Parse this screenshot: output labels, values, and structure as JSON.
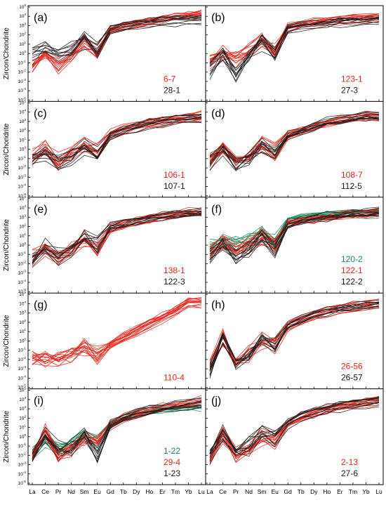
{
  "figure": {
    "ylabel": "Zircon/Chondrite",
    "x_ticks": [
      "La",
      "Ce",
      "Pr",
      "Nd",
      "Sm",
      "Eu",
      "Gd",
      "Tb",
      "Dy",
      "Ho",
      "Er",
      "Tm",
      "Yb",
      "Lu"
    ],
    "colors": {
      "red": "#e8251b",
      "black": "#1a1a1a",
      "green": "#16895a",
      "dark_red": "#7a1410"
    }
  },
  "chart_data": [
    {
      "type": "line",
      "panel": "(a)",
      "yscale": "log",
      "ylim": [
        1e-05,
        100000.0
      ],
      "categories": [
        "La",
        "Ce",
        "Pr",
        "Nd",
        "Sm",
        "Eu",
        "Gd",
        "Tb",
        "Dy",
        "Ho",
        "Er",
        "Tm",
        "Yb",
        "Lu"
      ],
      "legend": [
        {
          "label": "6-7",
          "color": "red"
        },
        {
          "label": "28-1",
          "color": "black"
        }
      ],
      "series": [
        {
          "color": "red",
          "count": 14,
          "values": [
            0.05,
            1,
            0.05,
            0.5,
            20,
            0.8,
            400,
            800,
            1500,
            2500,
            4000,
            7000,
            12000,
            18000
          ]
        },
        {
          "color": "black",
          "count": 10,
          "values": [
            0.6,
            3,
            0.5,
            2,
            25,
            1.5,
            300,
            600,
            1200,
            1800,
            2500,
            3000,
            3500,
            4000
          ]
        }
      ]
    },
    {
      "type": "line",
      "panel": "(b)",
      "yscale": "log",
      "ylim": [
        1e-05,
        100000.0
      ],
      "categories": [
        "La",
        "Ce",
        "Pr",
        "Nd",
        "Sm",
        "Eu",
        "Gd",
        "Tb",
        "Dy",
        "Ho",
        "Er",
        "Tm",
        "Yb",
        "Lu"
      ],
      "legend": [
        {
          "label": "123-1",
          "color": "red"
        },
        {
          "label": "27-3",
          "color": "black"
        }
      ],
      "series": [
        {
          "color": "red",
          "count": 14,
          "values": [
            0.1,
            1,
            0.3,
            2,
            40,
            1.5,
            500,
            1200,
            2000,
            3000,
            4000,
            5000,
            6000,
            7000
          ]
        },
        {
          "color": "black",
          "count": 10,
          "values": [
            0.01,
            0.5,
            0.003,
            0.2,
            10,
            0.6,
            300,
            600,
            900,
            1300,
            1700,
            2000,
            2500,
            3000
          ]
        }
      ]
    },
    {
      "type": "line",
      "panel": "(c)",
      "yscale": "log",
      "ylim": [
        1e-05,
        100000.0
      ],
      "categories": [
        "La",
        "Ce",
        "Pr",
        "Nd",
        "Sm",
        "Eu",
        "Gd",
        "Tb",
        "Dy",
        "Ho",
        "Er",
        "Tm",
        "Yb",
        "Lu"
      ],
      "legend": [
        {
          "label": "106-1",
          "color": "red"
        },
        {
          "label": "107-1",
          "color": "black"
        }
      ],
      "series": [
        {
          "color": "red",
          "count": 14,
          "values": [
            0.1,
            1,
            0.05,
            0.3,
            3,
            0.5,
            40,
            150,
            300,
            600,
            1000,
            1600,
            2200,
            3500
          ]
        },
        {
          "color": "black",
          "count": 10,
          "values": [
            0.08,
            0.6,
            0.03,
            0.2,
            2,
            0.2,
            30,
            100,
            250,
            500,
            900,
            1400,
            2000,
            3000
          ]
        }
      ]
    },
    {
      "type": "line",
      "panel": "(d)",
      "yscale": "log",
      "ylim": [
        1e-05,
        100000.0
      ],
      "categories": [
        "La",
        "Ce",
        "Pr",
        "Nd",
        "Sm",
        "Eu",
        "Gd",
        "Tb",
        "Dy",
        "Ho",
        "Er",
        "Tm",
        "Yb",
        "Lu"
      ],
      "legend": [
        {
          "label": "108-7",
          "color": "red"
        },
        {
          "label": "112-5",
          "color": "black"
        }
      ],
      "series": [
        {
          "color": "red",
          "count": 14,
          "values": [
            0.1,
            1,
            0.05,
            0.2,
            3,
            0.6,
            30,
            120,
            300,
            800,
            1500,
            2500,
            4000,
            3500
          ]
        },
        {
          "color": "black",
          "count": 10,
          "values": [
            0.05,
            0.6,
            0.03,
            0.1,
            2,
            0.4,
            25,
            100,
            280,
            700,
            1300,
            2200,
            3500,
            3000
          ]
        }
      ]
    },
    {
      "type": "line",
      "panel": "(e)",
      "yscale": "log",
      "ylim": [
        1e-05,
        100000.0
      ],
      "categories": [
        "La",
        "Ce",
        "Pr",
        "Nd",
        "Sm",
        "Eu",
        "Gd",
        "Tb",
        "Dy",
        "Ho",
        "Er",
        "Tm",
        "Yb",
        "Lu"
      ],
      "legend": [
        {
          "label": "138-1",
          "color": "red"
        },
        {
          "label": "122-3",
          "color": "black"
        }
      ],
      "series": [
        {
          "color": "red",
          "count": 14,
          "values": [
            0.05,
            0.5,
            0.05,
            0.5,
            5,
            0.5,
            80,
            200,
            400,
            800,
            1500,
            2500,
            3500,
            5000
          ]
        },
        {
          "color": "black",
          "count": 10,
          "values": [
            0.02,
            0.8,
            0.05,
            0.3,
            10,
            1,
            80,
            200,
            400,
            700,
            1200,
            1800,
            2500,
            3000
          ]
        }
      ]
    },
    {
      "type": "line",
      "panel": "(f)",
      "yscale": "log",
      "ylim": [
        1e-05,
        100000.0
      ],
      "categories": [
        "La",
        "Ce",
        "Pr",
        "Nd",
        "Sm",
        "Eu",
        "Gd",
        "Tb",
        "Dy",
        "Ho",
        "Er",
        "Tm",
        "Yb",
        "Lu"
      ],
      "legend": [
        {
          "label": "120-2",
          "color": "green"
        },
        {
          "label": "122-1",
          "color": "red"
        },
        {
          "label": "122-2",
          "color": "black"
        }
      ],
      "series": [
        {
          "color": "green",
          "count": 10,
          "values": [
            0.5,
            3,
            1,
            3,
            20,
            3,
            400,
            700,
            1000,
            1500,
            2000,
            2500,
            3000,
            3500
          ]
        },
        {
          "color": "red",
          "count": 14,
          "values": [
            0.2,
            2,
            0.3,
            1,
            10,
            1,
            200,
            500,
            800,
            1200,
            1800,
            2500,
            3000,
            4000
          ]
        },
        {
          "color": "black",
          "count": 10,
          "values": [
            0.05,
            1,
            0.05,
            0.5,
            5,
            0.3,
            150,
            400,
            700,
            1100,
            1600,
            2200,
            2800,
            3500
          ]
        }
      ]
    },
    {
      "type": "line",
      "panel": "(g)",
      "yscale": "log",
      "ylim": [
        1e-05,
        100000.0
      ],
      "categories": [
        "La",
        "Ce",
        "Pr",
        "Nd",
        "Sm",
        "Eu",
        "Gd",
        "Tb",
        "Dy",
        "Ho",
        "Er",
        "Tm",
        "Yb",
        "Lu"
      ],
      "legend": [
        {
          "label": "110-4",
          "color": "red"
        }
      ],
      "series": [
        {
          "color": "red",
          "count": 16,
          "values": [
            0.01,
            0.01,
            0.01,
            0.03,
            0.2,
            0.02,
            0.3,
            2,
            10,
            60,
            300,
            1500,
            10000,
            12000
          ]
        }
      ]
    },
    {
      "type": "line",
      "panel": "(h)",
      "yscale": "log",
      "ylim": [
        1e-05,
        100000.0
      ],
      "categories": [
        "La",
        "Ce",
        "Pr",
        "Nd",
        "Sm",
        "Eu",
        "Gd",
        "Tb",
        "Dy",
        "Ho",
        "Er",
        "Tm",
        "Yb",
        "Lu"
      ],
      "legend": [
        {
          "label": "26-56",
          "color": "red"
        },
        {
          "label": "26-57",
          "color": "black"
        }
      ],
      "series": [
        {
          "color": "red",
          "count": 12,
          "values": [
            0.001,
            2,
            0.005,
            0.05,
            1,
            0.3,
            30,
            150,
            500,
            1200,
            2500,
            4000,
            6000,
            8000
          ]
        },
        {
          "color": "black",
          "count": 10,
          "values": [
            0.0005,
            3,
            0.003,
            0.03,
            2,
            0.2,
            40,
            200,
            600,
            1500,
            3000,
            5000,
            7000,
            10000
          ]
        }
      ]
    },
    {
      "type": "line",
      "panel": "(i)",
      "yscale": "log",
      "ylim": [
        1e-05,
        100000.0
      ],
      "categories": [
        "La",
        "Ce",
        "Pr",
        "Nd",
        "Sm",
        "Eu",
        "Gd",
        "Tb",
        "Dy",
        "Ho",
        "Er",
        "Tm",
        "Yb",
        "Lu"
      ],
      "legend": [
        {
          "label": "1-22",
          "color": "green"
        },
        {
          "label": "29-4",
          "color": "red"
        },
        {
          "label": "1-23",
          "color": "black"
        }
      ],
      "series": [
        {
          "color": "green",
          "count": 10,
          "values": [
            0.01,
            0.5,
            0.05,
            0.1,
            1,
            0.2,
            20,
            100,
            250,
            500,
            700,
            900,
            1100,
            1300
          ]
        },
        {
          "color": "red",
          "count": 14,
          "values": [
            0.01,
            5,
            0.01,
            0.05,
            0.5,
            0.5,
            15,
            80,
            250,
            600,
            1200,
            2000,
            3500,
            6000
          ]
        },
        {
          "color": "black",
          "count": 10,
          "values": [
            0.01,
            1,
            0.05,
            0.1,
            2,
            0.01,
            20,
            100,
            300,
            700,
            1300,
            2200,
            3500,
            5000
          ]
        }
      ]
    },
    {
      "type": "line",
      "panel": "(j)",
      "yscale": "log",
      "ylim": [
        1e-05,
        100000.0
      ],
      "categories": [
        "La",
        "Ce",
        "Pr",
        "Nd",
        "Sm",
        "Eu",
        "Gd",
        "Tb",
        "Dy",
        "Ho",
        "Er",
        "Tm",
        "Yb",
        "Lu"
      ],
      "legend": [
        {
          "label": "2-13",
          "color": "red"
        },
        {
          "label": "27-6",
          "color": "black"
        }
      ],
      "series": [
        {
          "color": "red",
          "count": 14,
          "values": [
            0.005,
            1,
            0.01,
            0.05,
            0.8,
            0.3,
            20,
            100,
            300,
            700,
            1500,
            2500,
            4000,
            7000
          ]
        },
        {
          "color": "black",
          "count": 10,
          "values": [
            0.01,
            2,
            0.02,
            0.1,
            2,
            0.6,
            25,
            120,
            350,
            800,
            1600,
            2500,
            3500,
            5000
          ]
        }
      ]
    }
  ]
}
